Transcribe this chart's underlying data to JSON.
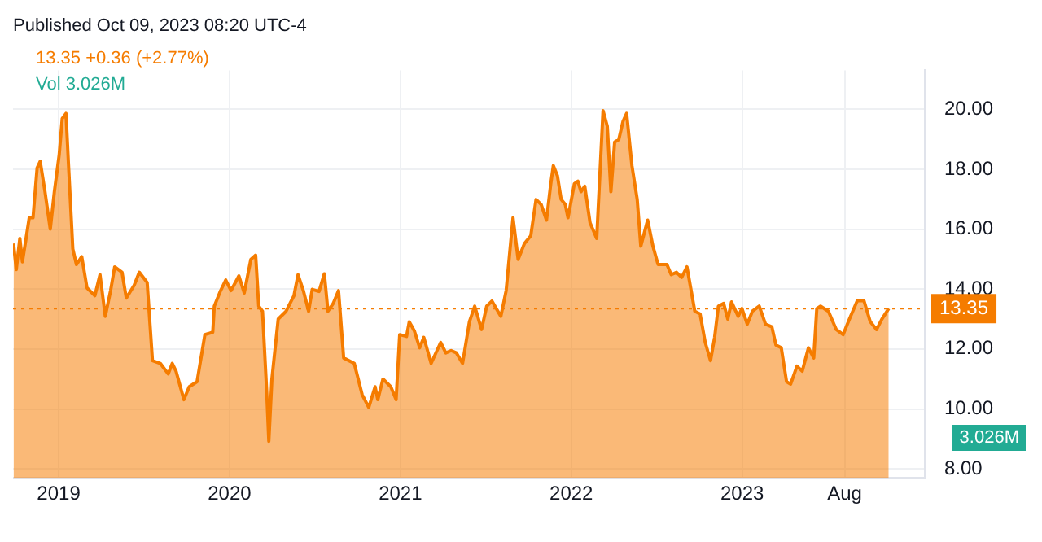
{
  "chart_data": {
    "type": "area",
    "annotations": [
      "Published Oct 09, 2023 08:20 UTC-4",
      "13.35 +0.36 (+2.77%)",
      "Vol 3.026M",
      "3.026M"
    ],
    "series": [
      {
        "color": "#f57c00",
        "x": [
          2018.736,
          2018.752,
          2018.773,
          2018.788,
          2018.828,
          2018.85,
          2018.874,
          2018.892,
          2018.92,
          2018.951,
          2018.975,
          2019.003,
          2019.021,
          2019.043,
          2019.058,
          2019.083,
          2019.104,
          2019.135,
          2019.166,
          2019.212,
          2019.242,
          2019.273,
          2019.304,
          2019.328,
          2019.371,
          2019.396,
          2019.442,
          2019.472,
          2019.518,
          2019.549,
          2019.595,
          2019.641,
          2019.665,
          2019.687,
          2019.733,
          2019.764,
          2019.81,
          2019.856,
          2019.902,
          2019.911,
          2019.948,
          2019.978,
          2020.009,
          2020.055,
          2020.086,
          2020.125,
          2020.153,
          2020.171,
          2020.193,
          2020.217,
          2020.23,
          2020.248,
          2020.285,
          2020.331,
          2020.377,
          2020.401,
          2020.432,
          2020.463,
          2020.484,
          2020.524,
          2020.555,
          2020.576,
          2020.607,
          2020.638,
          2020.668,
          2020.73,
          2020.776,
          2020.815,
          2020.852,
          2020.868,
          2020.898,
          2020.944,
          2020.975,
          2020.996,
          2021.036,
          2021.052,
          2021.082,
          2021.113,
          2021.137,
          2021.18,
          2021.236,
          2021.266,
          2021.297,
          2021.328,
          2021.364,
          2021.404,
          2021.435,
          2021.475,
          2021.505,
          2021.536,
          2021.588,
          2021.619,
          2021.659,
          2021.689,
          2021.726,
          2021.763,
          2021.794,
          2021.824,
          2021.855,
          2021.88,
          2021.895,
          2021.919,
          2021.941,
          2021.965,
          2021.981,
          2022.018,
          2022.039,
          2022.057,
          2022.079,
          2022.11,
          2022.149,
          2022.186,
          2022.211,
          2022.232,
          2022.254,
          2022.278,
          2022.303,
          2022.324,
          2022.355,
          2022.386,
          2022.407,
          2022.447,
          2022.478,
          2022.508,
          2022.56,
          2022.585,
          2022.616,
          2022.646,
          2022.677,
          2022.723,
          2022.754,
          2022.784,
          2022.815,
          2022.839,
          2022.861,
          2022.892,
          2022.916,
          2022.938,
          2022.977,
          2022.999,
          2023.03,
          2023.06,
          2023.1,
          2023.137,
          2023.174,
          2023.198,
          2023.229,
          2023.26,
          2023.284,
          2023.321,
          2023.352,
          2023.388,
          2023.419,
          2023.437,
          2023.459,
          2023.505,
          2023.551,
          2023.591,
          2023.628,
          2023.674,
          2023.713,
          2023.75,
          2023.787,
          2023.818,
          2023.858
        ],
        "values": [
          15.52,
          14.65,
          15.69,
          14.91,
          16.38,
          16.38,
          18.04,
          18.26,
          17.25,
          16.0,
          17.25,
          18.47,
          19.69,
          19.86,
          18.12,
          15.34,
          14.82,
          15.08,
          14.04,
          13.78,
          14.48,
          13.09,
          13.95,
          14.74,
          14.56,
          13.7,
          14.13,
          14.56,
          14.22,
          11.61,
          11.52,
          11.17,
          11.52,
          11.26,
          10.31,
          10.74,
          10.91,
          12.48,
          12.56,
          13.43,
          13.95,
          14.3,
          13.95,
          14.44,
          13.87,
          14.99,
          15.13,
          13.43,
          13.26,
          10.65,
          8.92,
          11.0,
          13.0,
          13.26,
          13.78,
          14.48,
          13.95,
          13.26,
          13.99,
          13.92,
          14.51,
          13.26,
          13.52,
          13.95,
          11.7,
          11.52,
          10.48,
          10.05,
          10.74,
          10.31,
          11.0,
          10.74,
          10.31,
          12.48,
          12.42,
          12.91,
          12.6,
          12.04,
          12.39,
          11.52,
          12.22,
          11.87,
          11.95,
          11.87,
          11.52,
          12.91,
          13.43,
          12.65,
          13.43,
          13.6,
          13.09,
          13.95,
          16.38,
          14.99,
          15.52,
          15.78,
          16.99,
          16.82,
          16.3,
          17.51,
          18.12,
          17.78,
          16.99,
          16.82,
          16.38,
          17.51,
          17.6,
          17.25,
          17.43,
          16.21,
          15.69,
          19.95,
          19.43,
          17.25,
          18.91,
          18.99,
          19.6,
          19.86,
          18.12,
          16.99,
          15.43,
          16.3,
          15.43,
          14.82,
          14.82,
          14.48,
          14.56,
          14.39,
          14.74,
          13.26,
          13.17,
          12.22,
          11.61,
          12.39,
          13.43,
          13.52,
          13.0,
          13.57,
          13.09,
          13.35,
          12.83,
          13.26,
          13.43,
          12.83,
          12.74,
          12.13,
          12.04,
          10.91,
          10.83,
          11.43,
          11.26,
          12.04,
          11.7,
          13.35,
          13.43,
          13.26,
          12.65,
          12.48,
          13.0,
          13.61,
          13.61,
          12.91,
          12.65,
          13.0,
          13.35
        ]
      }
    ],
    "xlim": [
      2018.733,
      2024.069
    ],
    "xticks": [
      2019,
      2020,
      2021,
      2022,
      2023,
      {
        "value": 2023.6,
        "label": "Aug"
      }
    ],
    "ylim": [
      7.7,
      21.3
    ],
    "yticks": [
      {
        "value": 8,
        "label": "8.00"
      },
      {
        "value": 10,
        "label": "10.00"
      },
      {
        "value": 12,
        "label": "12.00"
      },
      {
        "value": 14,
        "label": "14.00"
      },
      {
        "value": 16,
        "label": "16.00"
      },
      {
        "value": 18,
        "label": "18.00"
      },
      {
        "value": 20,
        "label": "20.00"
      }
    ],
    "ref_lines": [
      {
        "axis": "y",
        "value": 13.35,
        "label": "13.35",
        "color": "#f57c00",
        "line_style": "dotted"
      }
    ],
    "grid": true,
    "legend": false
  }
}
